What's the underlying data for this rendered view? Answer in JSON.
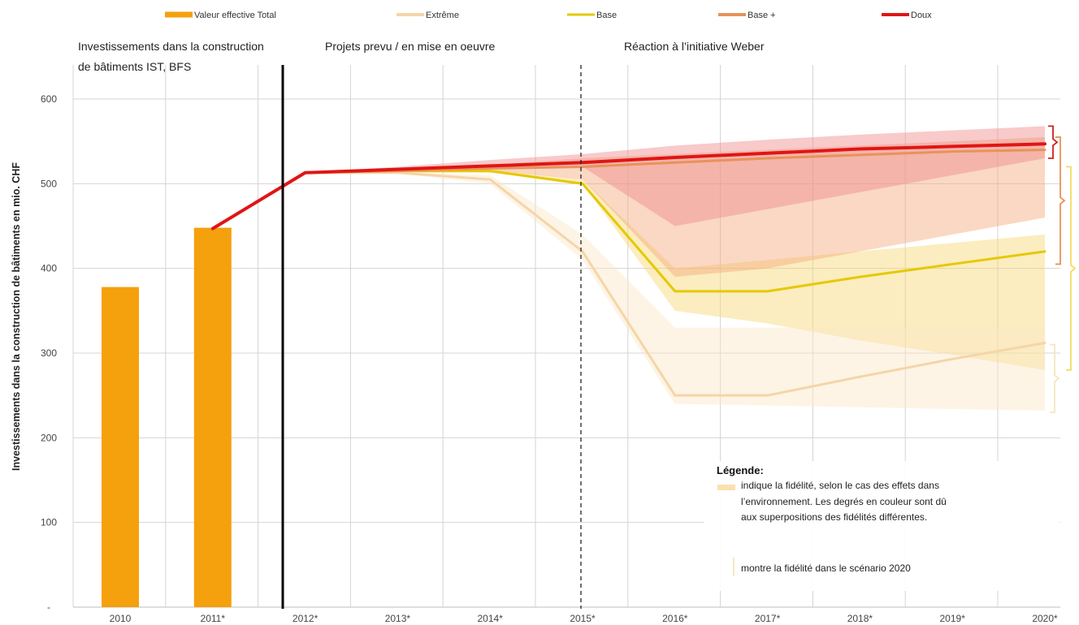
{
  "chart_data": {
    "type": "bar+line",
    "ylabel": "Investissements dans la construction de bâtiments en mio. CHF",
    "ylim": [
      0,
      600
    ],
    "yticks": [
      100,
      200,
      300,
      400,
      500,
      600
    ],
    "categories": [
      "2010",
      "2011*",
      "2012*",
      "2013*",
      "2014*",
      "2015*",
      "2016*",
      "2017*",
      "2018*",
      "2019*",
      "2020*"
    ],
    "grid": true,
    "legend_position": "top",
    "bars": {
      "name": "Valeur effective Total",
      "color": "#f5a00d",
      "values": [
        378,
        448,
        null,
        null,
        null,
        null,
        null,
        null,
        null,
        null,
        null
      ]
    },
    "series": [
      {
        "name": "Extrême",
        "color": "#f5d5a8",
        "values": [
          null,
          null,
          513,
          513,
          505,
          420,
          250,
          250,
          272,
          293,
          312
        ]
      },
      {
        "name": "Base",
        "color": "#e6c800",
        "values": [
          null,
          null,
          513,
          515,
          515,
          500,
          373,
          373,
          390,
          405,
          420
        ]
      },
      {
        "name": "Base +",
        "color": "#e8925a",
        "values": [
          null,
          null,
          513,
          515,
          518,
          520,
          525,
          530,
          534,
          538,
          540
        ]
      },
      {
        "name": "Doux",
        "color": "#e01515",
        "values": [
          null,
          447,
          513,
          517,
          521,
          525,
          531,
          536,
          541,
          544,
          547
        ]
      }
    ],
    "bands": [
      {
        "series": "Base",
        "color": "#f7d870",
        "lower": [
          null,
          null,
          513,
          513,
          513,
          500,
          350,
          335,
          315,
          298,
          280
        ],
        "upper": [
          null,
          null,
          513,
          516,
          517,
          505,
          400,
          410,
          420,
          430,
          440
        ]
      },
      {
        "series": "Extrême",
        "color": "#fbe6c6",
        "lower": [
          null,
          null,
          513,
          512,
          500,
          410,
          240,
          238,
          236,
          234,
          232
        ],
        "upper": [
          null,
          null,
          513,
          514,
          510,
          440,
          330,
          330,
          330,
          330,
          330
        ]
      },
      {
        "series": "Base +",
        "color": "#f4a97a",
        "lower": [
          null,
          null,
          513,
          514,
          516,
          505,
          390,
          400,
          420,
          440,
          460
        ],
        "upper": [
          null,
          null,
          513,
          516,
          522,
          530,
          535,
          540,
          545,
          550,
          555
        ]
      },
      {
        "series": "Doux",
        "color": "#f08a8a",
        "lower": [
          null,
          null,
          513,
          515,
          518,
          520,
          450,
          470,
          490,
          510,
          530
        ],
        "upper": [
          null,
          null,
          513,
          520,
          528,
          535,
          545,
          552,
          558,
          563,
          568
        ]
      }
    ],
    "annotations": {
      "section_1": "Investissements dans la construction",
      "section_1_line2": "de bâtiments IST, BFS",
      "section_2": "Projets prevu / en mise en oeuvre",
      "section_3": "Réaction à l’initiative Weber",
      "note_title": "Légende:",
      "note_line1": "indique la fidélité, selon le cas des effets dans",
      "note_line2": "l’environnement.  Les degrés en couleur sont dû",
      "note_line3": "aux superpositions des fidélités différentes.",
      "note_line4": "montre la fidélité dans le scénario 2020"
    }
  }
}
